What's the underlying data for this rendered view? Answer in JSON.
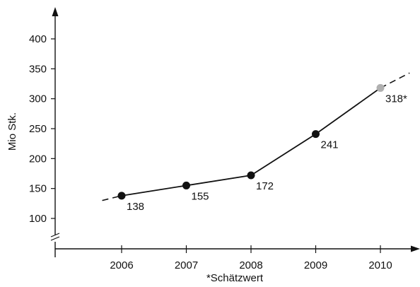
{
  "chart_data": {
    "type": "line",
    "ylabel": "Mio Stk.",
    "xlabel": "*Schätzwert",
    "y_break": true,
    "ylim": [
      80,
      420
    ],
    "yticks": [
      100,
      150,
      200,
      250,
      300,
      350,
      400
    ],
    "categories": [
      "2006",
      "2007",
      "2008",
      "2009",
      "2010"
    ],
    "series": [
      {
        "values": [
          138,
          155,
          172,
          241,
          318
        ],
        "point_labels": [
          "138",
          "155",
          "172",
          "241",
          "318*"
        ],
        "estimated": [
          false,
          false,
          false,
          false,
          true
        ],
        "color": "#111111",
        "estimate_color": "#b0b0b0"
      }
    ],
    "dashed_extension": {
      "before": [
        {
          "x": 2005.7,
          "y": 130
        }
      ],
      "after": [
        {
          "x": 2010.45,
          "y": 343
        }
      ]
    },
    "grid": false
  }
}
